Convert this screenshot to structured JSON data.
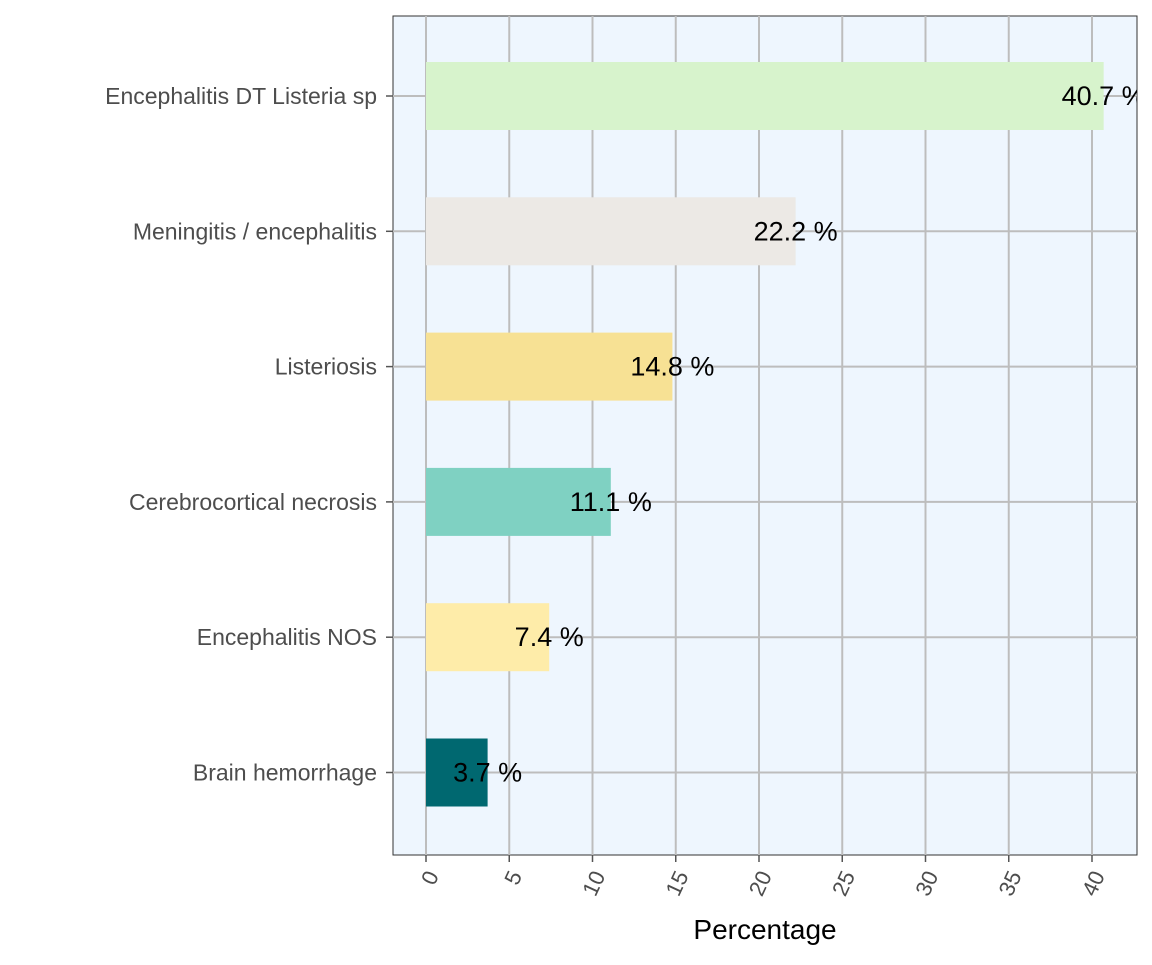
{
  "chart_data": {
    "type": "bar",
    "orientation": "horizontal",
    "title": "",
    "xlabel": "Percentage",
    "ylabel": "",
    "xlim": [
      -2,
      42.6
    ],
    "xticks": [
      0,
      5,
      10,
      15,
      20,
      25,
      30,
      35,
      40
    ],
    "grid": true,
    "legend": "none",
    "categories": [
      "Encephalitis DT Listeria sp",
      "Meningitis / encephalitis",
      "Listeriosis",
      "Cerebrocortical necrosis",
      "Encephalitis NOS",
      "Brain hemorrhage"
    ],
    "values": [
      40.7,
      22.2,
      14.8,
      11.1,
      7.4,
      3.7
    ],
    "labels": [
      "40.7 %",
      "22.2 %",
      "14.8 %",
      "11.1 %",
      "7.4 %",
      "3.7 %"
    ],
    "colors": [
      "#d7f3cc",
      "#ece9e5",
      "#f7e194",
      "#7fd1c2",
      "#feeca9",
      "#006870"
    ],
    "panel_background": "#eef6fe",
    "grid_color": "#bdbdbd"
  }
}
